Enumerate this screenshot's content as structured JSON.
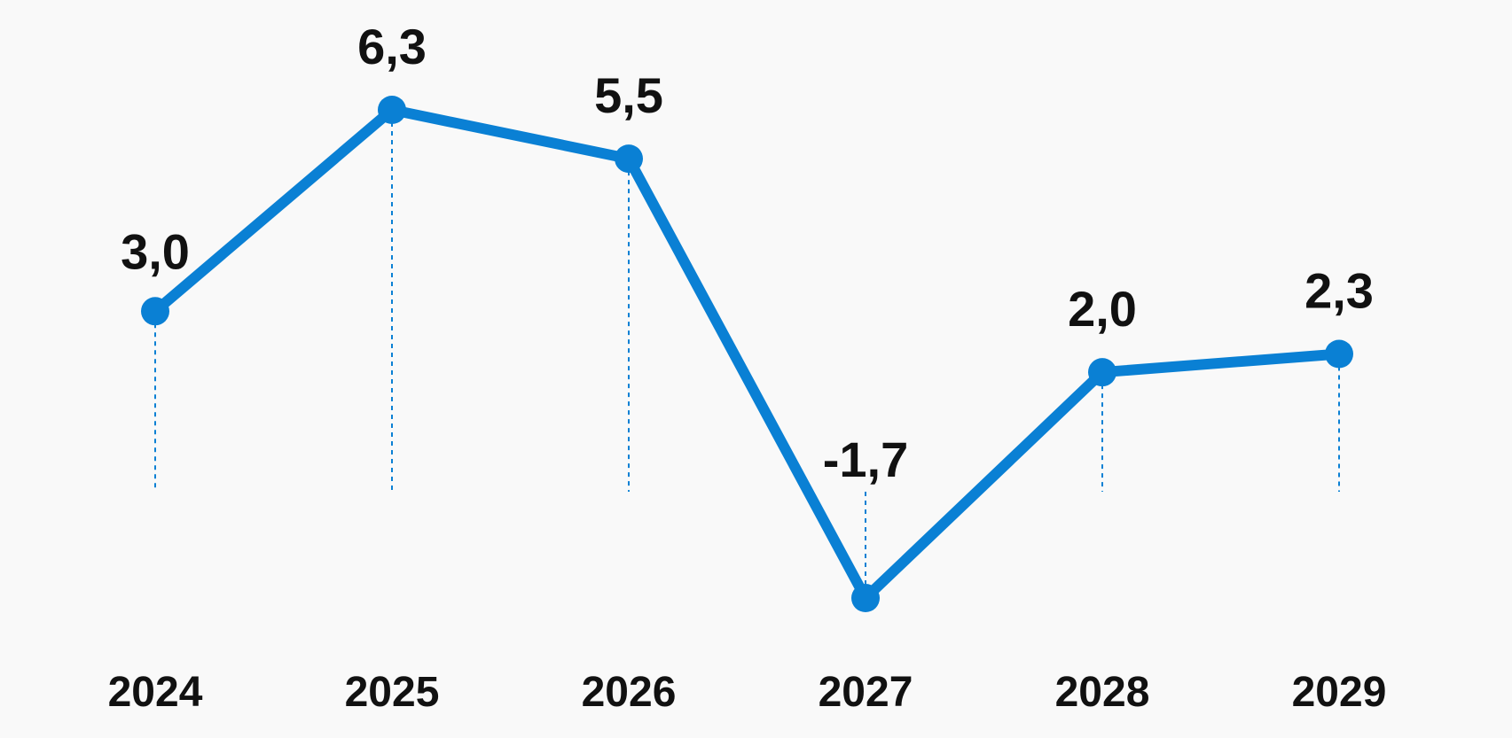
{
  "chart_data": {
    "type": "line",
    "categories": [
      "2024",
      "2025",
      "2026",
      "2027",
      "2028",
      "2029"
    ],
    "series": [
      {
        "values": [
          3.0,
          6.3,
          5.5,
          -1.7,
          2.0,
          2.3
        ],
        "labels": [
          "3,0",
          "6,3",
          "5,5",
          "-1,7",
          "2,0",
          "2,3"
        ]
      }
    ],
    "title": "",
    "xlabel": "",
    "ylabel": "",
    "ylim": [
      -1.7,
      6.3
    ],
    "grid": false,
    "legend": "none",
    "drop_lines": true,
    "colors": {
      "line": "#0a80d4",
      "drop_line": "#0a80d4",
      "text": "#111111",
      "background": "#f9f9f9"
    }
  }
}
